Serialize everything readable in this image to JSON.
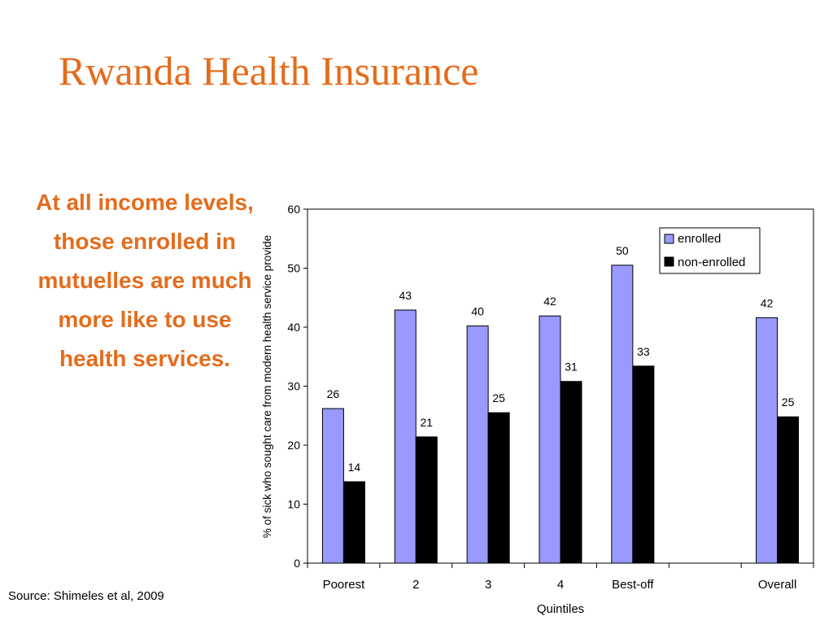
{
  "slide": {
    "title": "Rwanda Health Insurance",
    "claim": "At all income levels, those enrolled in mutuelles are much more like to use health services.",
    "source": "Source: Shimeles et al, 2009"
  },
  "colors": {
    "title": "#e46c1b",
    "enrolled": "#9999ff",
    "non_enrolled": "#000000"
  },
  "chart_data": {
    "type": "bar",
    "title": "",
    "xlabel": "Quintiles",
    "ylabel": "% of sick who sought care from modern health service provide",
    "categories": [
      "Poorest",
      "2",
      "3",
      "4",
      "Best-off",
      "",
      "Overall"
    ],
    "series": [
      {
        "name": "enrolled",
        "values": [
          26.2,
          42.9,
          40.2,
          41.9,
          50.5,
          null,
          41.6
        ],
        "labels": [
          "26",
          "43",
          "40",
          "42",
          "50",
          "",
          "42"
        ]
      },
      {
        "name": "non-enrolled",
        "values": [
          13.8,
          21.4,
          25.5,
          30.8,
          33.4,
          null,
          24.8
        ],
        "labels": [
          "14",
          "21",
          "25",
          "31",
          "33",
          "",
          "25"
        ]
      }
    ],
    "ylim": [
      0,
      60
    ],
    "yticks": [
      "0",
      "10",
      "20",
      "30",
      "40",
      "50",
      "60"
    ],
    "grid": false,
    "legend": "top-right"
  }
}
